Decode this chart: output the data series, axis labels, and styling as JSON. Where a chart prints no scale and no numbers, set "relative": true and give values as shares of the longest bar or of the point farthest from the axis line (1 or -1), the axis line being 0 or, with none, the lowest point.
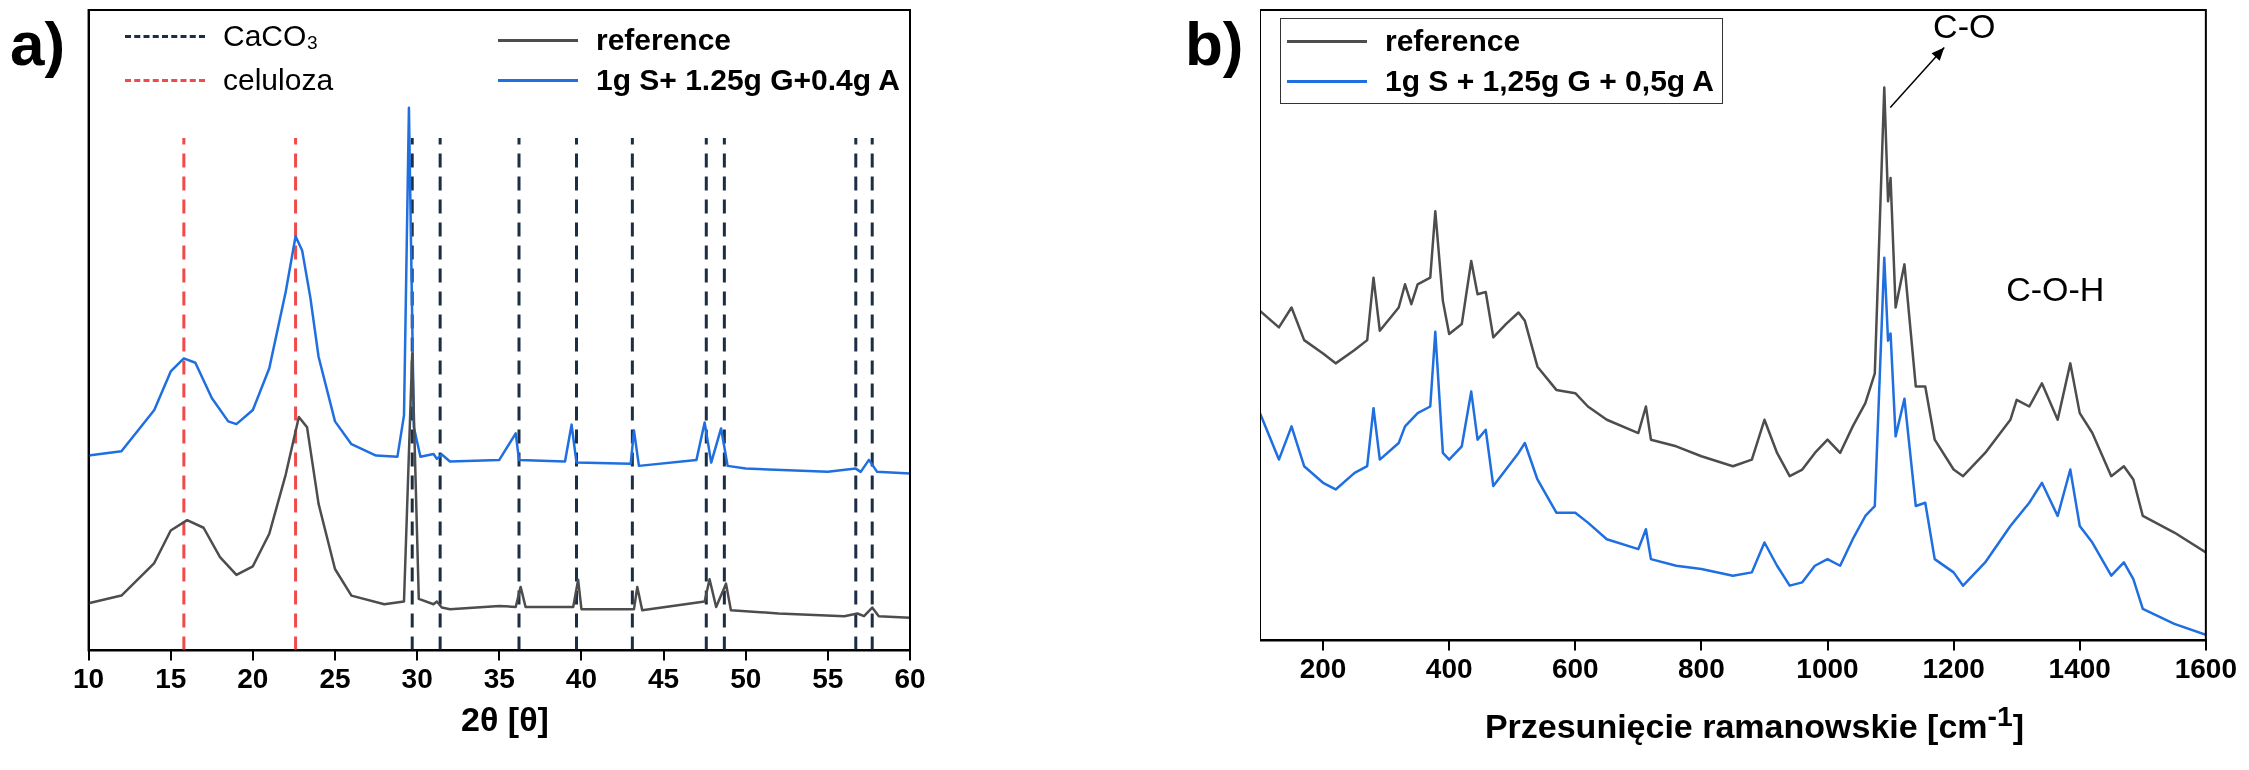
{
  "chart_data": [
    {
      "type": "line",
      "title": "a)",
      "xlabel": "2θ [θ]",
      "relative": true,
      "xlim": [
        10,
        60
      ],
      "xticks": [
        10,
        15,
        20,
        25,
        30,
        35,
        40,
        45,
        50,
        55,
        60
      ],
      "legend": "top right",
      "grid": false,
      "marker": "none",
      "series": [
        {
          "name": "reference",
          "color": "#4d4d4d",
          "x": [
            10,
            12,
            14,
            15,
            16,
            17,
            18,
            19,
            20,
            21,
            22,
            22.8,
            23.3,
            24,
            25,
            26,
            28,
            29.2,
            29.7,
            30.1,
            31,
            31.2,
            31.5,
            32,
            35,
            36,
            36.3,
            36.6,
            39.5,
            39.8,
            40,
            43.2,
            43.4,
            43.7,
            47.5,
            47.8,
            48.2,
            48.8,
            49.1,
            52,
            56,
            56.8,
            57.2,
            57.7,
            58.1,
            60
          ],
          "values": [
            0.087,
            0.101,
            0.161,
            0.221,
            0.24,
            0.226,
            0.172,
            0.139,
            0.155,
            0.215,
            0.324,
            0.43,
            0.411,
            0.27,
            0.15,
            0.101,
            0.085,
            0.09,
            0.547,
            0.095,
            0.085,
            0.09,
            0.079,
            0.076,
            0.082,
            0.08,
            0.117,
            0.08,
            0.08,
            0.13,
            0.076,
            0.076,
            0.117,
            0.074,
            0.09,
            0.131,
            0.08,
            0.123,
            0.074,
            0.068,
            0.063,
            0.068,
            0.063,
            0.079,
            0.063,
            0.06
          ]
        },
        {
          "name": "1g S+ 1.25g G+0.4g A",
          "color": "#1f6fe0",
          "x": [
            10,
            12,
            14,
            15,
            15.8,
            16.5,
            17.5,
            18.5,
            19,
            20,
            21,
            22,
            22.6,
            23,
            23.5,
            24,
            25,
            26,
            27.5,
            28.8,
            29.2,
            29.5,
            29.8,
            30.2,
            31,
            31.2,
            31.5,
            32,
            35,
            36,
            36.2,
            39,
            39.4,
            39.7,
            43,
            43.2,
            43.5,
            47,
            47.5,
            47.9,
            48.5,
            48.9,
            50,
            55,
            56.7,
            57,
            57.5,
            58,
            60
          ],
          "values": [
            0.359,
            0.367,
            0.443,
            0.514,
            0.538,
            0.53,
            0.465,
            0.422,
            0.417,
            0.443,
            0.52,
            0.661,
            0.763,
            0.737,
            0.65,
            0.541,
            0.422,
            0.38,
            0.359,
            0.357,
            0.433,
            1,
            0.411,
            0.357,
            0.362,
            0.353,
            0.361,
            0.348,
            0.351,
            0.4,
            0.351,
            0.348,
            0.416,
            0.346,
            0.344,
            0.405,
            0.34,
            0.351,
            0.42,
            0.346,
            0.409,
            0.34,
            0.335,
            0.329,
            0.335,
            0.329,
            0.351,
            0.329,
            0.326
          ]
        }
      ],
      "ref_lines": [
        {
          "axis": "x",
          "value": 15.8,
          "label": "celuloza",
          "color": "#f04a4a",
          "line_style": "dashed"
        },
        {
          "axis": "x",
          "value": 22.6,
          "color": "#f04a4a",
          "line_style": "dashed"
        },
        {
          "axis": "x",
          "value": 29.7,
          "label": "CaCO₃",
          "color": "#1c2e45",
          "line_style": "dashed"
        },
        {
          "axis": "x",
          "value": 31.4,
          "color": "#1c2e45",
          "line_style": "dashed"
        },
        {
          "axis": "x",
          "value": 36.2,
          "color": "#1c2e45",
          "line_style": "dashed"
        },
        {
          "axis": "x",
          "value": 39.7,
          "color": "#1c2e45",
          "line_style": "dashed"
        },
        {
          "axis": "x",
          "value": 43.1,
          "color": "#1c2e45",
          "line_style": "dashed"
        },
        {
          "axis": "x",
          "value": 47.6,
          "color": "#1c2e45",
          "line_style": "dashed"
        },
        {
          "axis": "x",
          "value": 48.7,
          "color": "#1c2e45",
          "line_style": "dashed"
        },
        {
          "axis": "x",
          "value": 56.7,
          "color": "#1c2e45",
          "line_style": "dashed"
        },
        {
          "axis": "x",
          "value": 57.7,
          "color": "#1c2e45",
          "line_style": "dashed"
        }
      ]
    },
    {
      "type": "line",
      "title": "b)",
      "xlabel": "Przesunięcie ramanowskie [cm$^{-1}$]",
      "relative": true,
      "xlim": [
        100,
        1600
      ],
      "xticks": [
        200,
        400,
        600,
        800,
        1000,
        1200,
        1400,
        1600
      ],
      "legend": "top left",
      "grid": false,
      "marker": "none",
      "annotations": [
        {
          "text": "C-O",
          "x": 1090,
          "y": 1
        },
        {
          "text": "C-O-H",
          "x": 1385,
          "y": 0.501
        }
      ],
      "series": [
        {
          "name": "reference",
          "color": "#4d4d4d",
          "x": [
            100,
            130,
            150,
            170,
            200,
            220,
            250,
            270,
            280,
            290,
            320,
            330,
            340,
            350,
            370,
            378,
            390,
            400,
            420,
            435,
            445,
            458,
            470,
            490,
            510,
            520,
            540,
            570,
            600,
            620,
            650,
            700,
            712,
            720,
            760,
            800,
            850,
            880,
            900,
            920,
            940,
            960,
            980,
            1000,
            1020,
            1040,
            1060,
            1075,
            1090,
            1096,
            1100,
            1108,
            1122,
            1140,
            1155,
            1170,
            1200,
            1215,
            1250,
            1290,
            1300,
            1320,
            1340,
            1365,
            1385,
            1400,
            1420,
            1450,
            1470,
            1485,
            1500,
            1550,
            1600
          ],
          "values": [
            0.596,
            0.566,
            0.602,
            0.543,
            0.519,
            0.501,
            0.525,
            0.543,
            0.656,
            0.56,
            0.602,
            0.644,
            0.608,
            0.644,
            0.656,
            0.776,
            0.614,
            0.554,
            0.572,
            0.686,
            0.626,
            0.63,
            0.548,
            0.572,
            0.593,
            0.578,
            0.495,
            0.453,
            0.447,
            0.423,
            0.399,
            0.375,
            0.423,
            0.363,
            0.351,
            0.333,
            0.315,
            0.327,
            0.399,
            0.339,
            0.297,
            0.309,
            0.339,
            0.363,
            0.339,
            0.387,
            0.429,
            0.483,
            1,
            0.794,
            0.836,
            0.602,
            0.68,
            0.459,
            0.459,
            0.363,
            0.309,
            0.297,
            0.339,
            0.399,
            0.435,
            0.423,
            0.465,
            0.399,
            0.501,
            0.411,
            0.375,
            0.297,
            0.315,
            0.291,
            0.225,
            0.195,
            0.159
          ]
        },
        {
          "name": "1g S + 1,25g G + 0,5g A",
          "color": "#1f6fe0",
          "x": [
            100,
            130,
            150,
            170,
            200,
            220,
            250,
            270,
            280,
            290,
            320,
            330,
            350,
            370,
            378,
            390,
            400,
            420,
            435,
            445,
            458,
            470,
            490,
            510,
            520,
            540,
            570,
            600,
            620,
            650,
            700,
            712,
            720,
            760,
            800,
            850,
            880,
            900,
            920,
            940,
            960,
            980,
            1000,
            1020,
            1040,
            1060,
            1075,
            1090,
            1096,
            1100,
            1108,
            1122,
            1140,
            1155,
            1170,
            1200,
            1215,
            1250,
            1290,
            1320,
            1340,
            1365,
            1385,
            1400,
            1420,
            1450,
            1470,
            1485,
            1500,
            1550,
            1600
          ],
          "values": [
            0.411,
            0.327,
            0.387,
            0.315,
            0.285,
            0.273,
            0.303,
            0.315,
            0.42,
            0.327,
            0.357,
            0.387,
            0.411,
            0.423,
            0.558,
            0.339,
            0.327,
            0.351,
            0.45,
            0.363,
            0.381,
            0.279,
            0.309,
            0.339,
            0.357,
            0.291,
            0.231,
            0.231,
            0.213,
            0.183,
            0.165,
            0.201,
            0.147,
            0.135,
            0.129,
            0.117,
            0.123,
            0.177,
            0.135,
            0.099,
            0.105,
            0.135,
            0.147,
            0.135,
            0.183,
            0.225,
            0.243,
            0.692,
            0.542,
            0.555,
            0.369,
            0.437,
            0.243,
            0.249,
            0.147,
            0.123,
            0.099,
            0.141,
            0.207,
            0.249,
            0.285,
            0.225,
            0.309,
            0.207,
            0.177,
            0.117,
            0.141,
            0.111,
            0.057,
            0.03,
            0.01
          ]
        }
      ]
    }
  ]
}
